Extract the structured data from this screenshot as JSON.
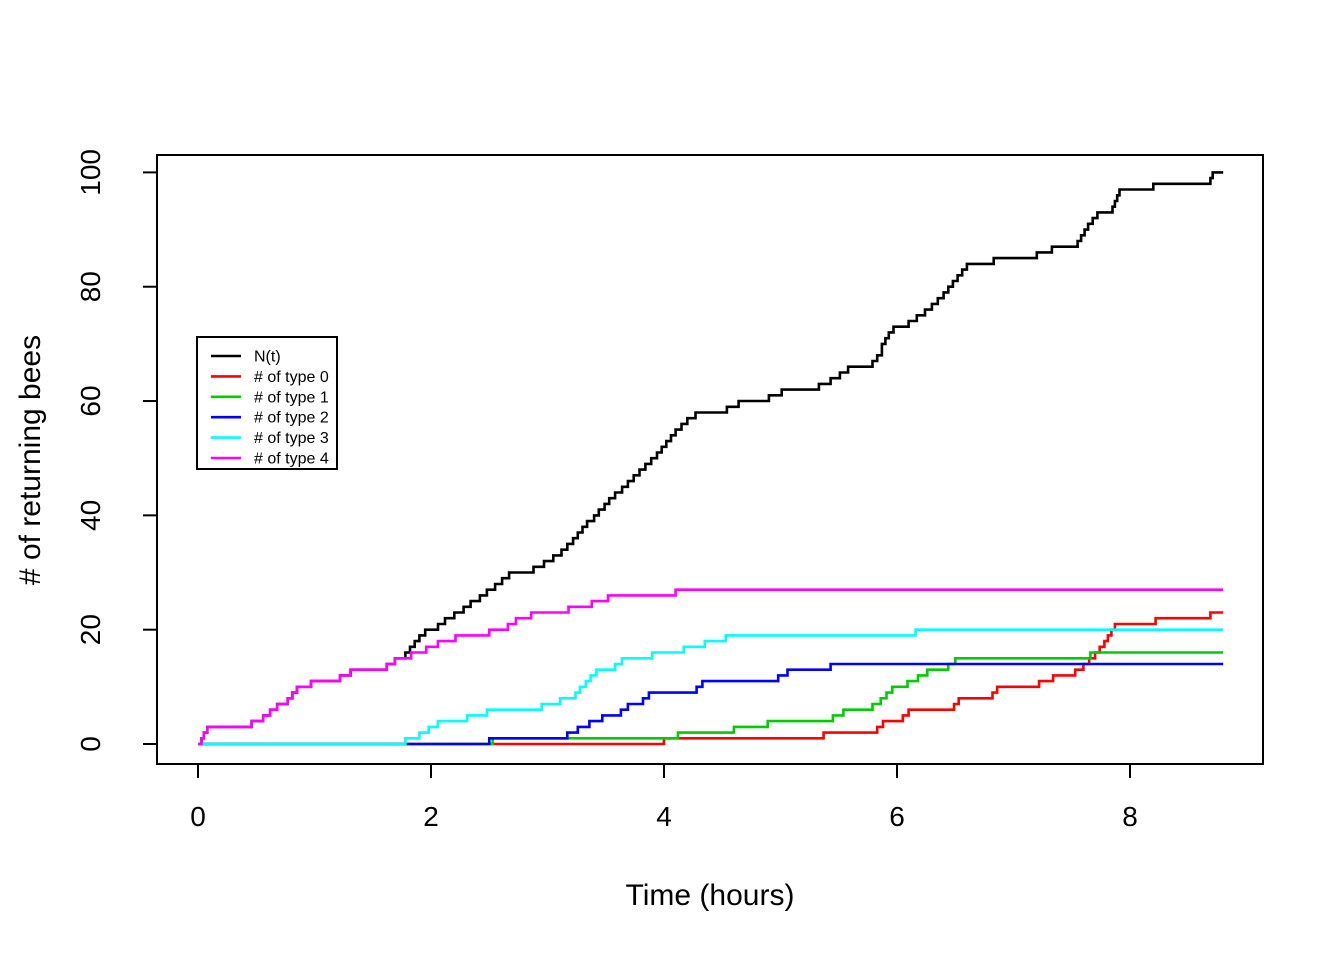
{
  "figure": {
    "background": "#FFFFFF",
    "axis_color": "#000000"
  },
  "chart_data": {
    "type": "line",
    "subtype": "step",
    "title": "",
    "xlabel": "Time (hours)",
    "ylabel": "# of returning bees",
    "x_ticks": [
      0,
      2,
      4,
      6,
      8
    ],
    "y_ticks": [
      0,
      20,
      40,
      60,
      80,
      100
    ],
    "xlim": [
      -0.35,
      9.14
    ],
    "ylim": [
      -3.5,
      103
    ],
    "grid": false,
    "legend_position": "left-middle",
    "t_end": 8.8,
    "legend": [
      {
        "label": "N(t)",
        "color": "#000000"
      },
      {
        "label": "# of type 0",
        "color": "#FF0000"
      },
      {
        "label": "# of type 1",
        "color": "#00CD00"
      },
      {
        "label": "# of type 2",
        "color": "#0000FF"
      },
      {
        "label": "# of type 3",
        "color": "#00FFFF"
      },
      {
        "label": "# of type 4",
        "color": "#FF00FF"
      }
    ],
    "series": [
      {
        "name": "N(t)",
        "color": "#000000",
        "steps": [
          [
            0,
            0
          ],
          [
            0.03,
            1
          ],
          [
            0.05,
            2
          ],
          [
            0.08,
            3
          ],
          [
            0.46,
            4
          ],
          [
            0.56,
            5
          ],
          [
            0.62,
            6
          ],
          [
            0.68,
            7
          ],
          [
            0.77,
            8
          ],
          [
            0.81,
            9
          ],
          [
            0.85,
            10
          ],
          [
            0.97,
            11
          ],
          [
            1.22,
            12
          ],
          [
            1.31,
            13
          ],
          [
            1.62,
            14
          ],
          [
            1.69,
            15
          ],
          [
            1.78,
            16
          ],
          [
            1.82,
            17
          ],
          [
            1.86,
            18
          ],
          [
            1.9,
            19
          ],
          [
            1.95,
            20
          ],
          [
            2.06,
            21
          ],
          [
            2.12,
            22
          ],
          [
            2.2,
            23
          ],
          [
            2.28,
            24
          ],
          [
            2.34,
            25
          ],
          [
            2.42,
            26
          ],
          [
            2.48,
            27
          ],
          [
            2.55,
            28
          ],
          [
            2.61,
            29
          ],
          [
            2.67,
            30
          ],
          [
            2.88,
            31
          ],
          [
            2.97,
            32
          ],
          [
            3.05,
            33
          ],
          [
            3.12,
            34
          ],
          [
            3.17,
            35
          ],
          [
            3.22,
            36
          ],
          [
            3.26,
            37
          ],
          [
            3.3,
            38
          ],
          [
            3.34,
            39
          ],
          [
            3.4,
            40
          ],
          [
            3.44,
            41
          ],
          [
            3.49,
            42
          ],
          [
            3.53,
            43
          ],
          [
            3.58,
            44
          ],
          [
            3.64,
            45
          ],
          [
            3.69,
            46
          ],
          [
            3.74,
            47
          ],
          [
            3.79,
            48
          ],
          [
            3.84,
            49
          ],
          [
            3.89,
            50
          ],
          [
            3.94,
            51
          ],
          [
            3.98,
            52
          ],
          [
            4.02,
            53
          ],
          [
            4.06,
            54
          ],
          [
            4.1,
            55
          ],
          [
            4.15,
            56
          ],
          [
            4.2,
            57
          ],
          [
            4.27,
            58
          ],
          [
            4.54,
            59
          ],
          [
            4.64,
            60
          ],
          [
            4.9,
            61
          ],
          [
            5.01,
            62
          ],
          [
            5.33,
            63
          ],
          [
            5.43,
            64
          ],
          [
            5.51,
            65
          ],
          [
            5.58,
            66
          ],
          [
            5.79,
            67
          ],
          [
            5.83,
            68
          ],
          [
            5.87,
            70
          ],
          [
            5.9,
            71
          ],
          [
            5.93,
            72
          ],
          [
            5.97,
            73
          ],
          [
            6.1,
            74
          ],
          [
            6.17,
            75
          ],
          [
            6.24,
            76
          ],
          [
            6.3,
            77
          ],
          [
            6.35,
            78
          ],
          [
            6.4,
            79
          ],
          [
            6.44,
            80
          ],
          [
            6.48,
            81
          ],
          [
            6.52,
            82
          ],
          [
            6.56,
            83
          ],
          [
            6.6,
            84
          ],
          [
            6.83,
            85
          ],
          [
            7.2,
            86
          ],
          [
            7.33,
            87
          ],
          [
            7.55,
            88
          ],
          [
            7.58,
            89
          ],
          [
            7.61,
            90
          ],
          [
            7.64,
            91
          ],
          [
            7.68,
            92
          ],
          [
            7.72,
            93
          ],
          [
            7.85,
            94
          ],
          [
            7.87,
            95
          ],
          [
            7.89,
            96
          ],
          [
            7.91,
            97
          ],
          [
            8.2,
            98
          ],
          [
            8.69,
            99
          ],
          [
            8.71,
            100
          ]
        ]
      },
      {
        "name": "# of type 0",
        "color": "#FF0000",
        "steps": [
          [
            0,
            0
          ],
          [
            4.0,
            1
          ],
          [
            5.37,
            2
          ],
          [
            5.83,
            3
          ],
          [
            5.88,
            4
          ],
          [
            6.05,
            5
          ],
          [
            6.1,
            6
          ],
          [
            6.49,
            7
          ],
          [
            6.53,
            8
          ],
          [
            6.82,
            9
          ],
          [
            6.86,
            10
          ],
          [
            7.22,
            11
          ],
          [
            7.34,
            12
          ],
          [
            7.53,
            13
          ],
          [
            7.6,
            14
          ],
          [
            7.65,
            15
          ],
          [
            7.7,
            16
          ],
          [
            7.74,
            17
          ],
          [
            7.78,
            18
          ],
          [
            7.81,
            19
          ],
          [
            7.84,
            20
          ],
          [
            7.87,
            21
          ],
          [
            8.22,
            22
          ],
          [
            8.69,
            23
          ]
        ]
      },
      {
        "name": "# of type 1",
        "color": "#00CD00",
        "steps": [
          [
            0,
            0
          ],
          [
            2.53,
            1
          ],
          [
            4.12,
            2
          ],
          [
            4.6,
            3
          ],
          [
            4.89,
            4
          ],
          [
            5.45,
            5
          ],
          [
            5.54,
            6
          ],
          [
            5.79,
            7
          ],
          [
            5.86,
            8
          ],
          [
            5.91,
            9
          ],
          [
            5.96,
            10
          ],
          [
            6.09,
            11
          ],
          [
            6.18,
            12
          ],
          [
            6.26,
            13
          ],
          [
            6.44,
            14
          ],
          [
            6.5,
            15
          ],
          [
            7.66,
            16
          ]
        ]
      },
      {
        "name": "# of type 2",
        "color": "#0000FF",
        "steps": [
          [
            0,
            0
          ],
          [
            2.5,
            1
          ],
          [
            3.17,
            2
          ],
          [
            3.26,
            3
          ],
          [
            3.36,
            4
          ],
          [
            3.47,
            5
          ],
          [
            3.63,
            6
          ],
          [
            3.69,
            7
          ],
          [
            3.82,
            8
          ],
          [
            3.87,
            9
          ],
          [
            4.28,
            10
          ],
          [
            4.33,
            11
          ],
          [
            4.98,
            12
          ],
          [
            5.06,
            13
          ],
          [
            5.43,
            14
          ]
        ]
      },
      {
        "name": "# of type 3",
        "color": "#00FFFF",
        "steps": [
          [
            0,
            0
          ],
          [
            1.78,
            1
          ],
          [
            1.9,
            2
          ],
          [
            1.98,
            3
          ],
          [
            2.06,
            4
          ],
          [
            2.31,
            5
          ],
          [
            2.48,
            6
          ],
          [
            2.95,
            7
          ],
          [
            3.11,
            8
          ],
          [
            3.24,
            9
          ],
          [
            3.28,
            10
          ],
          [
            3.33,
            11
          ],
          [
            3.37,
            12
          ],
          [
            3.42,
            13
          ],
          [
            3.58,
            14
          ],
          [
            3.64,
            15
          ],
          [
            3.9,
            16
          ],
          [
            4.17,
            17
          ],
          [
            4.35,
            18
          ],
          [
            4.53,
            19
          ],
          [
            6.16,
            20
          ]
        ]
      },
      {
        "name": "# of type 4",
        "color": "#FF00FF",
        "steps": [
          [
            0,
            0
          ],
          [
            0.03,
            1
          ],
          [
            0.05,
            2
          ],
          [
            0.08,
            3
          ],
          [
            0.46,
            4
          ],
          [
            0.56,
            5
          ],
          [
            0.62,
            6
          ],
          [
            0.68,
            7
          ],
          [
            0.77,
            8
          ],
          [
            0.81,
            9
          ],
          [
            0.85,
            10
          ],
          [
            0.97,
            11
          ],
          [
            1.22,
            12
          ],
          [
            1.31,
            13
          ],
          [
            1.62,
            14
          ],
          [
            1.69,
            15
          ],
          [
            1.83,
            16
          ],
          [
            1.96,
            17
          ],
          [
            2.06,
            18
          ],
          [
            2.21,
            19
          ],
          [
            2.5,
            20
          ],
          [
            2.66,
            21
          ],
          [
            2.73,
            22
          ],
          [
            2.86,
            23
          ],
          [
            3.18,
            24
          ],
          [
            3.38,
            25
          ],
          [
            3.52,
            26
          ],
          [
            4.1,
            27
          ]
        ]
      }
    ]
  }
}
